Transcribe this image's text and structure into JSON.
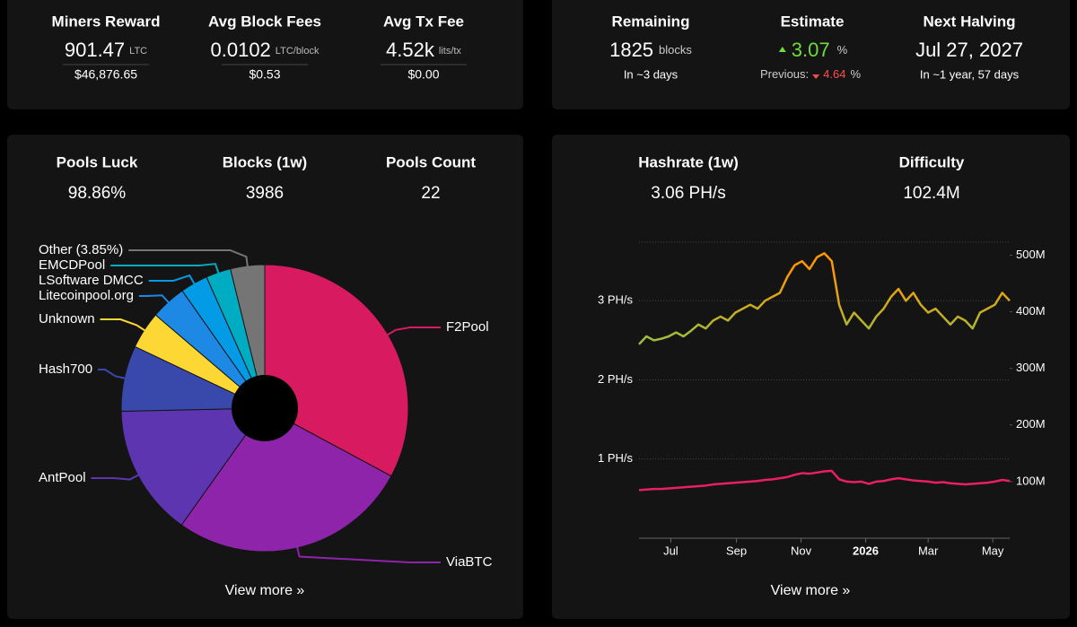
{
  "mining": {
    "items": [
      {
        "label": "Miners Reward",
        "value": "901.47",
        "unit": "LTC",
        "fiat": "$46,876.65"
      },
      {
        "label": "Avg Block Fees",
        "value": "0.0102",
        "unit": "LTC/block",
        "fiat": "$0.53"
      },
      {
        "label": "Avg Tx Fee",
        "value": "4.52k",
        "unit": "lits/tx",
        "fiat": "$0.00"
      }
    ]
  },
  "halving": {
    "remaining": {
      "label": "Remaining",
      "value": "1825",
      "unit": "blocks",
      "note": "In ~3 days"
    },
    "estimate": {
      "label": "Estimate",
      "value": "3.07",
      "unit": "%",
      "previous_label": "Previous:",
      "previous_value": "4.64",
      "previous_unit": "%"
    },
    "next": {
      "label": "Next Halving",
      "value": "Jul 27, 2027",
      "note": "In ~1 year, 57 days"
    }
  },
  "pools": {
    "stats": [
      {
        "label": "Pools Luck",
        "value": "98.86%"
      },
      {
        "label": "Blocks (1w)",
        "value": "3986"
      },
      {
        "label": "Pools Count",
        "value": "22"
      }
    ],
    "link": "View more »"
  },
  "network": {
    "stats": [
      {
        "label": "Hashrate (1w)",
        "value": "3.06 PH/s"
      },
      {
        "label": "Difficulty",
        "value": "102.4M"
      }
    ],
    "link": "View more »"
  },
  "chart_data": [
    {
      "type": "pie",
      "categories": [
        "F2Pool",
        "ViaBTC",
        "AntPool",
        "Hash700",
        "Unknown",
        "Litecoinpool.org",
        "LSoftware DMCC",
        "EMCDPool",
        "Other (3.85%)"
      ],
      "values": [
        32.85,
        27,
        14.8,
        7.4,
        4.2,
        4,
        3.1,
        2.8,
        3.85
      ],
      "colors": [
        "#d81b60",
        "#8e24aa",
        "#5e35b1",
        "#3949ab",
        "#fdd835",
        "#1e88e5",
        "#039be5",
        "#00acc1",
        "#757575"
      ]
    },
    {
      "type": "line",
      "x": [
        "2025-06-01",
        "2025-06-08",
        "2025-06-15",
        "2025-06-22",
        "2025-06-29",
        "2025-07-06",
        "2025-07-13",
        "2025-07-20",
        "2025-07-27",
        "2025-08-03",
        "2025-08-10",
        "2025-08-17",
        "2025-08-24",
        "2025-08-31",
        "2025-09-07",
        "2025-09-14",
        "2025-09-21",
        "2025-09-28",
        "2025-10-05",
        "2025-10-12",
        "2025-10-19",
        "2025-10-26",
        "2025-11-02",
        "2025-11-09",
        "2025-11-16",
        "2025-11-23",
        "2025-11-30",
        "2025-12-07",
        "2025-12-14",
        "2025-12-21",
        "2025-12-28",
        "2026-01-04",
        "2026-01-11",
        "2026-01-18",
        "2026-01-25",
        "2026-02-01",
        "2026-02-08",
        "2026-02-15",
        "2026-02-22",
        "2026-03-01",
        "2026-03-08",
        "2026-03-15",
        "2026-03-22",
        "2026-03-29",
        "2026-04-05",
        "2026-04-12",
        "2026-04-19",
        "2026-04-26",
        "2026-05-03",
        "2026-05-10",
        "2026-05-17"
      ],
      "series": [
        {
          "color": "#8bc34a",
          "peak_color": "#ff9800",
          "values": [
            2.45,
            2.55,
            2.5,
            2.52,
            2.55,
            2.6,
            2.55,
            2.62,
            2.7,
            2.65,
            2.75,
            2.8,
            2.75,
            2.85,
            2.9,
            2.95,
            2.9,
            3.0,
            3.05,
            3.1,
            3.3,
            3.45,
            3.5,
            3.4,
            3.55,
            3.6,
            3.5,
            2.95,
            2.7,
            2.85,
            2.75,
            2.65,
            2.8,
            2.9,
            3.05,
            3.15,
            3.0,
            3.1,
            2.95,
            2.85,
            2.9,
            2.8,
            2.7,
            2.8,
            2.75,
            2.65,
            2.85,
            2.9,
            2.95,
            3.1,
            3.0
          ]
        },
        {
          "color": "#e91e63",
          "axis": "y2",
          "values": [
            85,
            86,
            87,
            87,
            88,
            89,
            90,
            91,
            92,
            93,
            95,
            96,
            97,
            98,
            99,
            100,
            101,
            103,
            104,
            106,
            108,
            112,
            115,
            114,
            116,
            118,
            119,
            104,
            100,
            99,
            100,
            96,
            100,
            101,
            104,
            106,
            104,
            102,
            101,
            100,
            98,
            99,
            97,
            96,
            95,
            96,
            97,
            98,
            100,
            103,
            101
          ]
        }
      ],
      "xlim": [
        "2025-06-01",
        "2026-05-17"
      ],
      "xticks": [
        {
          "value": "2025-07-01",
          "label": "Jul"
        },
        {
          "value": "2025-09-01",
          "label": "Sep"
        },
        {
          "value": "2025-11-01",
          "label": "Nov"
        },
        {
          "value": "2026-01-01",
          "label": "2026"
        },
        {
          "value": "2026-03-01",
          "label": "Mar"
        },
        {
          "value": "2026-05-01",
          "label": "May"
        }
      ],
      "ylim": [
        0,
        3.74
      ],
      "yticks": [
        {
          "value": 1,
          "label": "1 PH/s"
        },
        {
          "value": 2,
          "label": "2 PH/s"
        },
        {
          "value": 3,
          "label": "3 PH/s"
        }
      ],
      "y2lim": [
        0,
        523
      ],
      "y2ticks": [
        {
          "value": 100,
          "label": "100M"
        },
        {
          "value": 200,
          "label": "200M"
        },
        {
          "value": 300,
          "label": "300M"
        },
        {
          "value": 400,
          "label": "400M"
        },
        {
          "value": 500,
          "label": "500M"
        }
      ],
      "grid": true
    }
  ]
}
